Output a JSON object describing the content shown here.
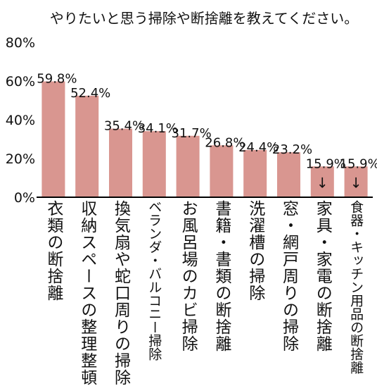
{
  "chart_data": {
    "type": "bar",
    "title": "やりたいと思う掃除や断捨離を教えてください。",
    "xlabel": "",
    "ylabel": "",
    "ylim": [
      0,
      80
    ],
    "y_ticks": [
      "0%",
      "20%",
      "40%",
      "60%",
      "80%"
    ],
    "grid": false,
    "legend": "none",
    "bar_color": "#d99690",
    "categories": [
      "衣類の断捨離",
      "収納スペースの整理整頓",
      "換気扇や蛇口周りの掃除",
      "ベランダ・バルコニー掃除",
      "お風呂場のカビ掃除",
      "書籍・書類の断捨離",
      "洗濯槽の掃除",
      "窓・網戸周りの掃除",
      "家具・家電の断捨離",
      "食器・キッチン用品の断捨離"
    ],
    "values": [
      59.8,
      52.4,
      35.4,
      34.1,
      31.7,
      26.8,
      24.4,
      23.2,
      15.9,
      15.9
    ],
    "data_labels": [
      "59.8%",
      "52.4%",
      "35.4%",
      "34.1%",
      "31.7%",
      "26.8%",
      "24.4%",
      "23.2%",
      "15.9%",
      "15.9%"
    ],
    "annotations": [
      "↓",
      "↓"
    ]
  }
}
